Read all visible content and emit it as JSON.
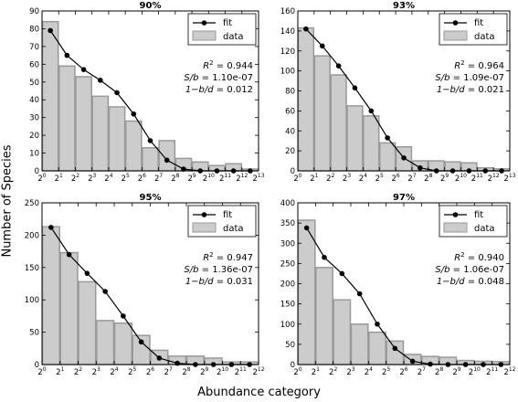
{
  "figure": {
    "ylabel": "Number of Species",
    "xlabel": "Abundance category"
  },
  "legend": {
    "fit": "fit",
    "data": "data"
  },
  "colors": {
    "bar_fill": "#cccccc",
    "bar_edge": "#999999",
    "fit_line": "#000000",
    "axis": "#000000"
  },
  "chart_data": [
    {
      "type": "bar",
      "title": "90%",
      "categories": [
        "2^0",
        "2^1",
        "2^2",
        "2^3",
        "2^4",
        "2^5",
        "2^6",
        "2^7",
        "2^8",
        "2^9",
        "2^10",
        "2^11",
        "2^12"
      ],
      "x_ticks": [
        "2^0",
        "2^1",
        "2^2",
        "2^3",
        "2^4",
        "2^5",
        "2^6",
        "2^7",
        "2^8",
        "2^9",
        "2^10",
        "2^11",
        "2^12",
        "2^13"
      ],
      "ylim": [
        0,
        90
      ],
      "y_ticks": [
        0,
        10,
        20,
        30,
        40,
        50,
        60,
        70,
        80,
        90
      ],
      "series": [
        {
          "name": "data",
          "type": "bar",
          "values": [
            84,
            59,
            53,
            42,
            36,
            28,
            13,
            17,
            7,
            5,
            3,
            4,
            1
          ]
        },
        {
          "name": "fit",
          "type": "line",
          "values": [
            79,
            65,
            57,
            51,
            44,
            32,
            17,
            6,
            1,
            0,
            0,
            0,
            0
          ]
        }
      ],
      "annotations": {
        "r2_label": "R",
        "r2_sup": "2",
        "r2_value": "= 0.944",
        "sb_label": "S/b",
        "sb_value": "= 1.10e-07",
        "bd_label": "1−b/d",
        "bd_value": "= 0.012"
      },
      "legend_position": "upper right"
    },
    {
      "type": "bar",
      "title": "93%",
      "categories": [
        "2^0",
        "2^1",
        "2^2",
        "2^3",
        "2^4",
        "2^5",
        "2^6",
        "2^7",
        "2^8",
        "2^9",
        "2^10",
        "2^11",
        "2^12"
      ],
      "x_ticks": [
        "2^0",
        "2^1",
        "2^2",
        "2^3",
        "2^4",
        "2^5",
        "2^6",
        "2^7",
        "2^8",
        "2^9",
        "2^10",
        "2^11",
        "2^12",
        "2^13"
      ],
      "ylim": [
        0,
        160
      ],
      "y_ticks": [
        0,
        20,
        40,
        60,
        80,
        100,
        120,
        140,
        160
      ],
      "series": [
        {
          "name": "data",
          "type": "bar",
          "values": [
            143,
            115,
            96,
            65,
            55,
            28,
            24,
            10,
            10,
            9,
            8,
            3,
            2
          ]
        },
        {
          "name": "fit",
          "type": "line",
          "values": [
            142,
            125,
            105,
            83,
            60,
            33,
            13,
            3,
            0,
            0,
            0,
            0,
            0
          ]
        }
      ],
      "annotations": {
        "r2_label": "R",
        "r2_sup": "2",
        "r2_value": "= 0.964",
        "sb_label": "S/b",
        "sb_value": "= 1.09e-07",
        "bd_label": "1−b/d",
        "bd_value": "= 0.021"
      },
      "legend_position": "upper right"
    },
    {
      "type": "bar",
      "title": "95%",
      "categories": [
        "2^0",
        "2^1",
        "2^2",
        "2^3",
        "2^4",
        "2^5",
        "2^6",
        "2^7",
        "2^8",
        "2^9",
        "2^10",
        "2^11"
      ],
      "x_ticks": [
        "2^0",
        "2^1",
        "2^2",
        "2^3",
        "2^4",
        "2^5",
        "2^6",
        "2^7",
        "2^8",
        "2^9",
        "2^10",
        "2^11",
        "2^12"
      ],
      "ylim": [
        0,
        250
      ],
      "y_ticks": [
        0,
        50,
        100,
        150,
        200,
        250
      ],
      "series": [
        {
          "name": "data",
          "type": "bar",
          "values": [
            213,
            173,
            128,
            68,
            64,
            45,
            22,
            13,
            13,
            10,
            4,
            4
          ]
        },
        {
          "name": "fit",
          "type": "line",
          "values": [
            212,
            170,
            141,
            113,
            75,
            35,
            10,
            2,
            0,
            0,
            0,
            0
          ]
        }
      ],
      "annotations": {
        "r2_label": "R",
        "r2_sup": "2",
        "r2_value": "= 0.947",
        "sb_label": "S/b",
        "sb_value": "= 1.36e-07",
        "bd_label": "1−b/d",
        "bd_value": "= 0.031"
      },
      "legend_position": "upper right"
    },
    {
      "type": "bar",
      "title": "97%",
      "categories": [
        "2^0",
        "2^1",
        "2^2",
        "2^3",
        "2^4",
        "2^5",
        "2^6",
        "2^7",
        "2^8",
        "2^9",
        "2^10",
        "2^11"
      ],
      "x_ticks": [
        "2^0",
        "2^1",
        "2^2",
        "2^3",
        "2^4",
        "2^5",
        "2^6",
        "2^7",
        "2^8",
        "2^9",
        "2^10",
        "2^11",
        "2^12"
      ],
      "ylim": [
        0,
        400
      ],
      "y_ticks": [
        0,
        50,
        100,
        150,
        200,
        250,
        300,
        350,
        400
      ],
      "series": [
        {
          "name": "data",
          "type": "bar",
          "values": [
            357,
            240,
            160,
            100,
            80,
            58,
            25,
            20,
            18,
            10,
            8,
            7
          ]
        },
        {
          "name": "fit",
          "type": "line",
          "values": [
            338,
            265,
            225,
            175,
            100,
            40,
            8,
            1,
            0,
            0,
            0,
            0
          ]
        }
      ],
      "annotations": {
        "r2_label": "R",
        "r2_sup": "2",
        "r2_value": "= 0.940",
        "sb_label": "S/b",
        "sb_value": "= 1.06e-07",
        "bd_label": "1−b/d",
        "bd_value": "= 0.048"
      },
      "legend_position": "upper right"
    }
  ]
}
